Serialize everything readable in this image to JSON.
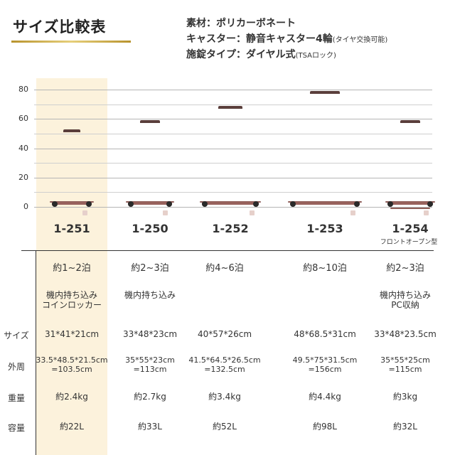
{
  "header": {
    "title": "サイズ比較表",
    "material": "素材：ポリカーボネート",
    "caster": "キャスター：静音キャスター4輪",
    "caster_note": "(タイヤ交換可能)",
    "lock": "施錠タイプ：ダイヤル式",
    "lock_note": "(TSAロック)"
  },
  "chart_data": {
    "type": "bar",
    "categories": [
      "1-251",
      "1-250",
      "1-252",
      "1-253",
      "1-254"
    ],
    "values": [
      48.5,
      55,
      64.5,
      75,
      55
    ],
    "ylim": [
      0,
      80
    ],
    "yticks": [
      "0",
      "20",
      "40",
      "60",
      "80"
    ],
    "grid": true,
    "highlight": "1-251"
  },
  "models": [
    {
      "code": "1-251",
      "nights": "約1~2泊",
      "feature": "機内持ち込み\nコインロッカー",
      "note": "",
      "size": "31*41*21cm",
      "girth": "33.5*48.5*21.5cm\n=103.5cm",
      "weight": "約2.4kg",
      "capacity": "約22L"
    },
    {
      "code": "1-250",
      "nights": "約2~3泊",
      "feature": "機内持ち込み",
      "note": "",
      "size": "33*48*23cm",
      "girth": "35*55*23cm\n=113cm",
      "weight": "約2.7kg",
      "capacity": "約33L"
    },
    {
      "code": "1-252",
      "nights": "約4~6泊",
      "feature": "",
      "note": "",
      "size": "40*57*26cm",
      "girth": "41.5*64.5*26.5cm\n=132.5cm",
      "weight": "約3.4kg",
      "capacity": "約52L"
    },
    {
      "code": "1-253",
      "nights": "約8~10泊",
      "feature": "",
      "note": "",
      "size": "48*68.5*31cm",
      "girth": "49.5*75*31.5cm\n=156cm",
      "weight": "約4.4kg",
      "capacity": "約98L"
    },
    {
      "code": "1-254",
      "nights": "約2~3泊",
      "feature": "機内持ち込み\nPC収納",
      "note": "フロントオープン型",
      "size": "33*48*23.5cm",
      "girth": "35*55*25cm\n=115cm",
      "weight": "約3kg",
      "capacity": "約32L"
    }
  ],
  "rows": {
    "size": "サイズ",
    "girth": "外周",
    "weight": "重量",
    "capacity": "容量"
  }
}
